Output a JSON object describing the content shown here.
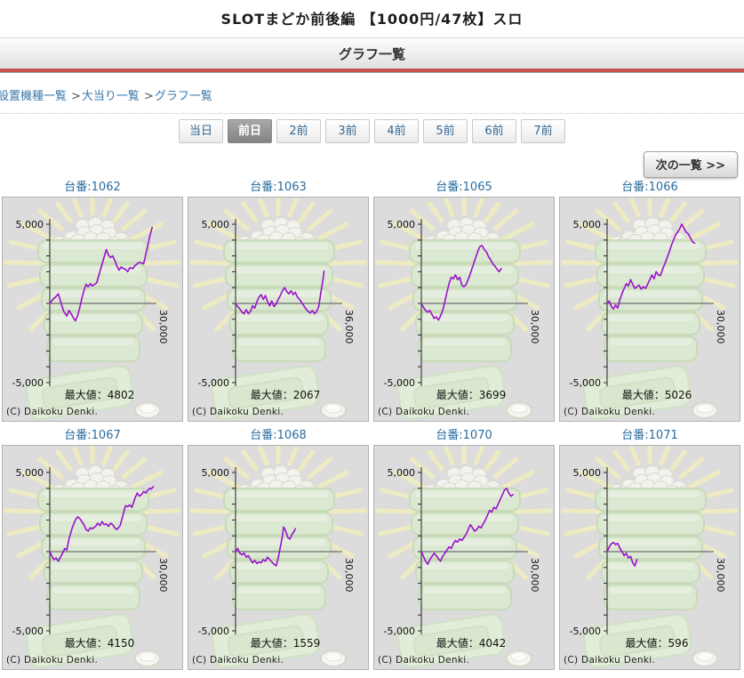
{
  "page": {
    "title": "SLOTまどか前後編 【1000円/47枚】スロ",
    "section_header": "グラフ一覧",
    "breadcrumb": [
      {
        "name": "machine-list",
        "label": "設置機種一覧"
      },
      {
        "name": "jackpot-list",
        "label": "大当り一覧"
      },
      {
        "name": "graph-list",
        "label": "グラフ一覧"
      }
    ],
    "breadcrumb_separator": ">",
    "tabs": [
      {
        "name": "today",
        "label": "当日",
        "selected": false
      },
      {
        "name": "prev-1",
        "label": "前日",
        "selected": true
      },
      {
        "name": "prev-2",
        "label": "2前",
        "selected": false
      },
      {
        "name": "prev-3",
        "label": "3前",
        "selected": false
      },
      {
        "name": "prev-4",
        "label": "4前",
        "selected": false
      },
      {
        "name": "prev-5",
        "label": "5前",
        "selected": false
      },
      {
        "name": "prev-6",
        "label": "6前",
        "selected": false
      },
      {
        "name": "prev-7",
        "label": "7前",
        "selected": false
      }
    ],
    "next_button": "次の一覧 >>"
  },
  "colors": {
    "accent_red": "#c9534f",
    "link_blue": "#3a77a9",
    "tab_blue": "#336791",
    "graph_title_blue": "#2a6b9c",
    "line_purple": "#9911cc",
    "panel_bg": "#dcdcdc"
  },
  "chart_data": [
    {
      "type": "line",
      "title": "台番:1062",
      "machine_no": "1062",
      "ylim": [
        -5000,
        5000
      ],
      "y_tick_step": 1000,
      "y_tick_labels": [
        "5,000",
        "-5,000"
      ],
      "x_max_label": "30,000",
      "max_label": "最大値：",
      "max_value": "4802",
      "copyright": "(C) Daikoku Denki.",
      "points": [
        [
          0,
          0
        ],
        [
          0.03,
          250
        ],
        [
          0.06,
          450
        ],
        [
          0.08,
          600
        ],
        [
          0.1,
          150
        ],
        [
          0.13,
          -500
        ],
        [
          0.16,
          -800
        ],
        [
          0.18,
          -450
        ],
        [
          0.2,
          -650
        ],
        [
          0.22,
          -900
        ],
        [
          0.24,
          -1100
        ],
        [
          0.26,
          -800
        ],
        [
          0.28,
          -300
        ],
        [
          0.3,
          300
        ],
        [
          0.32,
          800
        ],
        [
          0.34,
          1200
        ],
        [
          0.36,
          1050
        ],
        [
          0.38,
          1250
        ],
        [
          0.4,
          1100
        ],
        [
          0.42,
          1200
        ],
        [
          0.44,
          1300
        ],
        [
          0.47,
          2000
        ],
        [
          0.5,
          2700
        ],
        [
          0.53,
          3400
        ],
        [
          0.55,
          3050
        ],
        [
          0.57,
          2900
        ],
        [
          0.59,
          3000
        ],
        [
          0.61,
          2700
        ],
        [
          0.63,
          2350
        ],
        [
          0.65,
          2100
        ],
        [
          0.67,
          2300
        ],
        [
          0.69,
          2200
        ],
        [
          0.71,
          2150
        ],
        [
          0.73,
          2000
        ],
        [
          0.75,
          2250
        ],
        [
          0.78,
          2200
        ],
        [
          0.8,
          2400
        ],
        [
          0.84,
          2600
        ],
        [
          0.88,
          2500
        ],
        [
          0.91,
          3400
        ],
        [
          0.94,
          4300
        ],
        [
          0.96,
          4800
        ]
      ]
    },
    {
      "type": "line",
      "title": "台番:1063",
      "machine_no": "1063",
      "ylim": [
        -5000,
        5000
      ],
      "y_tick_step": 1000,
      "y_tick_labels": [
        "5,000",
        "-5,000"
      ],
      "x_max_label": "36,000",
      "max_label": "最大値：",
      "max_value": "2067",
      "copyright": "(C) Daikoku Denki.",
      "points": [
        [
          0,
          0
        ],
        [
          0.02,
          -200
        ],
        [
          0.04,
          -350
        ],
        [
          0.06,
          -550
        ],
        [
          0.08,
          -650
        ],
        [
          0.1,
          -400
        ],
        [
          0.12,
          -650
        ],
        [
          0.14,
          -500
        ],
        [
          0.16,
          -150
        ],
        [
          0.18,
          -300
        ],
        [
          0.2,
          100
        ],
        [
          0.22,
          400
        ],
        [
          0.24,
          550
        ],
        [
          0.26,
          250
        ],
        [
          0.28,
          500
        ],
        [
          0.3,
          100
        ],
        [
          0.32,
          -150
        ],
        [
          0.34,
          150
        ],
        [
          0.36,
          -200
        ],
        [
          0.38,
          -50
        ],
        [
          0.4,
          250
        ],
        [
          0.42,
          500
        ],
        [
          0.44,
          800
        ],
        [
          0.46,
          1000
        ],
        [
          0.48,
          750
        ],
        [
          0.5,
          600
        ],
        [
          0.52,
          800
        ],
        [
          0.54,
          550
        ],
        [
          0.56,
          700
        ],
        [
          0.58,
          400
        ],
        [
          0.6,
          250
        ],
        [
          0.62,
          50
        ],
        [
          0.64,
          -150
        ],
        [
          0.66,
          -350
        ],
        [
          0.68,
          -500
        ],
        [
          0.7,
          -600
        ],
        [
          0.72,
          -450
        ],
        [
          0.74,
          -650
        ],
        [
          0.76,
          -500
        ],
        [
          0.78,
          -200
        ],
        [
          0.8,
          700
        ],
        [
          0.82,
          1500
        ],
        [
          0.83,
          2050
        ]
      ]
    },
    {
      "type": "line",
      "title": "台番:1065",
      "machine_no": "1065",
      "ylim": [
        -5000,
        5000
      ],
      "y_tick_step": 1000,
      "y_tick_labels": [
        "5,000",
        "-5,000"
      ],
      "x_max_label": "30,000",
      "max_label": "最大値：",
      "max_value": "3699",
      "copyright": "(C) Daikoku Denki.",
      "points": [
        [
          0,
          0
        ],
        [
          0.02,
          -250
        ],
        [
          0.04,
          -450
        ],
        [
          0.06,
          -550
        ],
        [
          0.08,
          -450
        ],
        [
          0.1,
          -700
        ],
        [
          0.12,
          -950
        ],
        [
          0.14,
          -850
        ],
        [
          0.16,
          -1050
        ],
        [
          0.18,
          -800
        ],
        [
          0.2,
          -450
        ],
        [
          0.22,
          100
        ],
        [
          0.24,
          700
        ],
        [
          0.26,
          1250
        ],
        [
          0.28,
          1650
        ],
        [
          0.3,
          1550
        ],
        [
          0.32,
          1800
        ],
        [
          0.34,
          1500
        ],
        [
          0.36,
          1650
        ],
        [
          0.38,
          1150
        ],
        [
          0.4,
          1050
        ],
        [
          0.42,
          1200
        ],
        [
          0.45,
          1700
        ],
        [
          0.48,
          2300
        ],
        [
          0.51,
          2900
        ],
        [
          0.53,
          3300
        ],
        [
          0.55,
          3600
        ],
        [
          0.57,
          3650
        ],
        [
          0.59,
          3400
        ],
        [
          0.61,
          3250
        ],
        [
          0.63,
          2950
        ],
        [
          0.65,
          2750
        ],
        [
          0.67,
          2500
        ],
        [
          0.69,
          2350
        ],
        [
          0.71,
          2150
        ],
        [
          0.73,
          2000
        ],
        [
          0.75,
          2200
        ]
      ]
    },
    {
      "type": "line",
      "title": "台番:1066",
      "machine_no": "1066",
      "ylim": [
        -5000,
        5000
      ],
      "y_tick_step": 1000,
      "y_tick_labels": [
        "5,000",
        "-5,000"
      ],
      "x_max_label": "30,000",
      "max_label": "最大値：",
      "max_value": "5026",
      "copyright": "(C) Daikoku Denki.",
      "points": [
        [
          0,
          0
        ],
        [
          0.02,
          150
        ],
        [
          0.04,
          -200
        ],
        [
          0.06,
          -350
        ],
        [
          0.08,
          -100
        ],
        [
          0.1,
          -300
        ],
        [
          0.12,
          250
        ],
        [
          0.15,
          800
        ],
        [
          0.18,
          1250
        ],
        [
          0.2,
          1100
        ],
        [
          0.22,
          1500
        ],
        [
          0.24,
          1200
        ],
        [
          0.26,
          950
        ],
        [
          0.28,
          1050
        ],
        [
          0.3,
          1150
        ],
        [
          0.32,
          900
        ],
        [
          0.34,
          1050
        ],
        [
          0.36,
          950
        ],
        [
          0.38,
          1200
        ],
        [
          0.4,
          1500
        ],
        [
          0.42,
          1800
        ],
        [
          0.44,
          1550
        ],
        [
          0.46,
          2000
        ],
        [
          0.48,
          1800
        ],
        [
          0.5,
          1750
        ],
        [
          0.52,
          2150
        ],
        [
          0.55,
          2650
        ],
        [
          0.58,
          3200
        ],
        [
          0.61,
          3800
        ],
        [
          0.64,
          4300
        ],
        [
          0.66,
          4500
        ],
        [
          0.68,
          4700
        ],
        [
          0.7,
          5000
        ],
        [
          0.72,
          4750
        ],
        [
          0.74,
          4500
        ],
        [
          0.76,
          4400
        ],
        [
          0.78,
          4150
        ],
        [
          0.8,
          3900
        ],
        [
          0.82,
          3800
        ]
      ]
    },
    {
      "type": "line",
      "title": "台番:1067",
      "machine_no": "1067",
      "ylim": [
        -5000,
        5000
      ],
      "y_tick_step": 1000,
      "y_tick_labels": [
        "5,000",
        "-5,000"
      ],
      "x_max_label": "30,000",
      "max_label": "最大値：",
      "max_value": "4150",
      "copyright": "(C) Daikoku Denki.",
      "points": [
        [
          0,
          0
        ],
        [
          0.02,
          -300
        ],
        [
          0.04,
          -500
        ],
        [
          0.06,
          -400
        ],
        [
          0.08,
          -600
        ],
        [
          0.1,
          -350
        ],
        [
          0.12,
          -100
        ],
        [
          0.14,
          200
        ],
        [
          0.16,
          100
        ],
        [
          0.18,
          800
        ],
        [
          0.21,
          1500
        ],
        [
          0.24,
          2000
        ],
        [
          0.26,
          2200
        ],
        [
          0.28,
          2100
        ],
        [
          0.3,
          1900
        ],
        [
          0.32,
          1700
        ],
        [
          0.34,
          1400
        ],
        [
          0.36,
          1300
        ],
        [
          0.38,
          1500
        ],
        [
          0.4,
          1450
        ],
        [
          0.43,
          1600
        ],
        [
          0.45,
          1800
        ],
        [
          0.47,
          1650
        ],
        [
          0.49,
          1900
        ],
        [
          0.51,
          1700
        ],
        [
          0.53,
          1750
        ],
        [
          0.55,
          1600
        ],
        [
          0.57,
          1800
        ],
        [
          0.59,
          1700
        ],
        [
          0.61,
          1500
        ],
        [
          0.63,
          1400
        ],
        [
          0.66,
          1650
        ],
        [
          0.69,
          2400
        ],
        [
          0.71,
          2900
        ],
        [
          0.73,
          2850
        ],
        [
          0.75,
          2950
        ],
        [
          0.77,
          2800
        ],
        [
          0.8,
          3400
        ],
        [
          0.82,
          3700
        ],
        [
          0.84,
          3500
        ],
        [
          0.86,
          3600
        ],
        [
          0.88,
          3800
        ],
        [
          0.9,
          3700
        ],
        [
          0.92,
          3900
        ],
        [
          0.94,
          4000
        ],
        [
          0.95,
          3950
        ],
        [
          0.97,
          4100
        ]
      ]
    },
    {
      "type": "line",
      "title": "台番:1068",
      "machine_no": "1068",
      "ylim": [
        -5000,
        5000
      ],
      "y_tick_step": 1000,
      "y_tick_labels": [
        "5,000",
        "-5,000"
      ],
      "x_max_label": "30,000",
      "max_label": "最大値：",
      "max_value": "1559",
      "copyright": "(C) Daikoku Denki.",
      "points": [
        [
          0,
          0
        ],
        [
          0.02,
          200
        ],
        [
          0.04,
          -100
        ],
        [
          0.06,
          -200
        ],
        [
          0.08,
          -100
        ],
        [
          0.1,
          -350
        ],
        [
          0.12,
          -250
        ],
        [
          0.14,
          -500
        ],
        [
          0.16,
          -700
        ],
        [
          0.18,
          -550
        ],
        [
          0.2,
          -750
        ],
        [
          0.22,
          -650
        ],
        [
          0.24,
          -700
        ],
        [
          0.26,
          -500
        ],
        [
          0.28,
          -600
        ],
        [
          0.3,
          -350
        ],
        [
          0.32,
          -500
        ],
        [
          0.34,
          -650
        ],
        [
          0.36,
          -800
        ],
        [
          0.38,
          -900
        ],
        [
          0.4,
          -400
        ],
        [
          0.42,
          300
        ],
        [
          0.44,
          1000
        ],
        [
          0.45,
          1550
        ],
        [
          0.47,
          1300
        ],
        [
          0.49,
          900
        ],
        [
          0.51,
          800
        ],
        [
          0.53,
          1100
        ],
        [
          0.55,
          1300
        ],
        [
          0.56,
          1450
        ]
      ]
    },
    {
      "type": "line",
      "title": "台番:1070",
      "machine_no": "1070",
      "ylim": [
        -5000,
        5000
      ],
      "y_tick_step": 1000,
      "y_tick_labels": [
        "5,000",
        "-5,000"
      ],
      "x_max_label": "30,000",
      "max_label": "最大値：",
      "max_value": "4042",
      "copyright": "(C) Daikoku Denki.",
      "points": [
        [
          0,
          0
        ],
        [
          0.02,
          -300
        ],
        [
          0.04,
          -600
        ],
        [
          0.06,
          -800
        ],
        [
          0.08,
          -500
        ],
        [
          0.1,
          -300
        ],
        [
          0.12,
          -100
        ],
        [
          0.14,
          -250
        ],
        [
          0.16,
          -450
        ],
        [
          0.18,
          -600
        ],
        [
          0.2,
          -300
        ],
        [
          0.22,
          -100
        ],
        [
          0.24,
          100
        ],
        [
          0.26,
          300
        ],
        [
          0.28,
          200
        ],
        [
          0.3,
          500
        ],
        [
          0.32,
          700
        ],
        [
          0.34,
          600
        ],
        [
          0.36,
          800
        ],
        [
          0.38,
          700
        ],
        [
          0.4,
          900
        ],
        [
          0.42,
          1100
        ],
        [
          0.44,
          1400
        ],
        [
          0.46,
          1700
        ],
        [
          0.48,
          1500
        ],
        [
          0.5,
          1300
        ],
        [
          0.52,
          1400
        ],
        [
          0.54,
          1600
        ],
        [
          0.56,
          1500
        ],
        [
          0.58,
          1750
        ],
        [
          0.6,
          2000
        ],
        [
          0.62,
          2300
        ],
        [
          0.64,
          2600
        ],
        [
          0.66,
          2500
        ],
        [
          0.68,
          2800
        ],
        [
          0.7,
          2700
        ],
        [
          0.72,
          3000
        ],
        [
          0.74,
          3300
        ],
        [
          0.76,
          3600
        ],
        [
          0.78,
          3900
        ],
        [
          0.8,
          4000
        ],
        [
          0.82,
          3700
        ],
        [
          0.84,
          3500
        ],
        [
          0.86,
          3600
        ]
      ]
    },
    {
      "type": "line",
      "title": "台番:1071",
      "machine_no": "1071",
      "ylim": [
        -5000,
        5000
      ],
      "y_tick_step": 1000,
      "y_tick_labels": [
        "5,000",
        "-5,000"
      ],
      "x_max_label": "30,000",
      "max_label": "最大値：",
      "max_value": "596",
      "copyright": "(C) Daikoku Denki.",
      "points": [
        [
          0,
          0
        ],
        [
          0.02,
          300
        ],
        [
          0.04,
          500
        ],
        [
          0.06,
          580
        ],
        [
          0.08,
          450
        ],
        [
          0.1,
          520
        ],
        [
          0.12,
          200
        ],
        [
          0.14,
          0
        ],
        [
          0.16,
          -250
        ],
        [
          0.18,
          -100
        ],
        [
          0.2,
          -400
        ],
        [
          0.22,
          -300
        ],
        [
          0.24,
          -700
        ],
        [
          0.26,
          -900
        ],
        [
          0.28,
          -500
        ]
      ]
    }
  ]
}
